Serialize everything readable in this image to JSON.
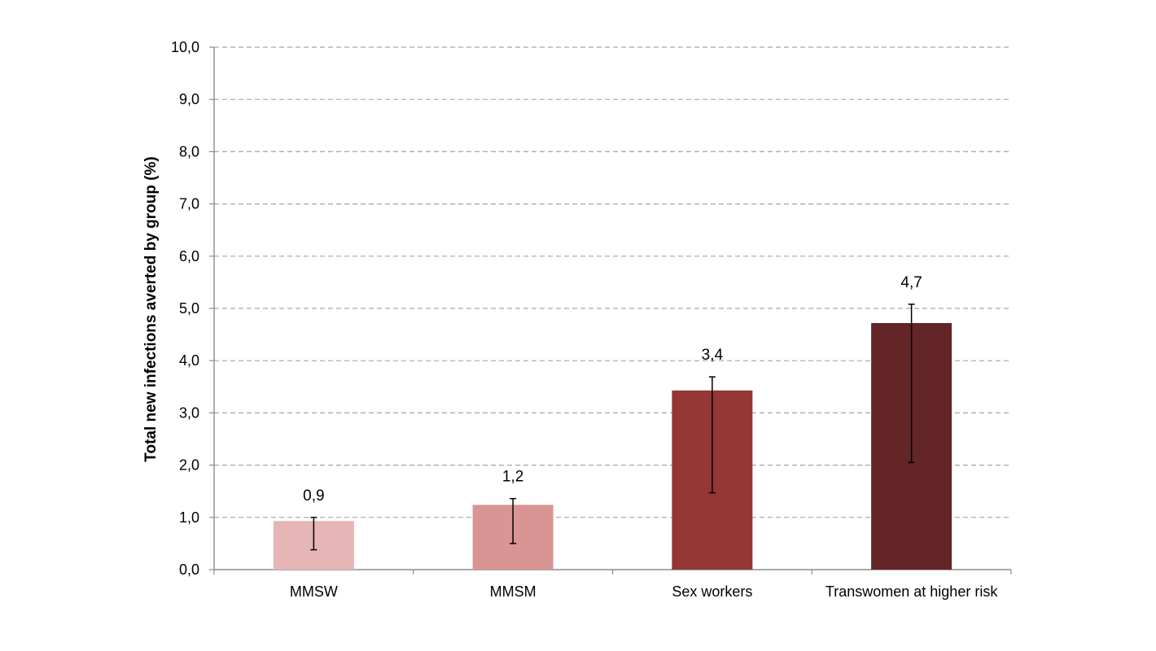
{
  "chart_data": {
    "type": "bar",
    "title": "",
    "xlabel": "",
    "ylabel": "Total new infections averted by group (%)",
    "categories": [
      "MMSW",
      "MMSM",
      "Sex workers",
      "Transwomen at higher risk"
    ],
    "values": [
      0.93,
      1.24,
      3.43,
      4.72
    ],
    "data_labels": [
      "0,9",
      "1,2",
      "3,4",
      "4,7"
    ],
    "error_low": [
      0.38,
      0.5,
      1.47,
      2.05
    ],
    "error_high": [
      1.0,
      1.36,
      3.69,
      5.08
    ],
    "colors": [
      "#e6b5b6",
      "#d99593",
      "#953735",
      "#632526"
    ],
    "ylim": [
      0,
      10
    ],
    "yticks": [
      0,
      1,
      2,
      3,
      4,
      5,
      6,
      7,
      8,
      9,
      10
    ],
    "ytick_labels": [
      "0,0",
      "1,0",
      "2,0",
      "3,0",
      "4,0",
      "5,0",
      "6,0",
      "7,0",
      "8,0",
      "9,0",
      "10,0"
    ],
    "grid": true,
    "legend": "none"
  }
}
